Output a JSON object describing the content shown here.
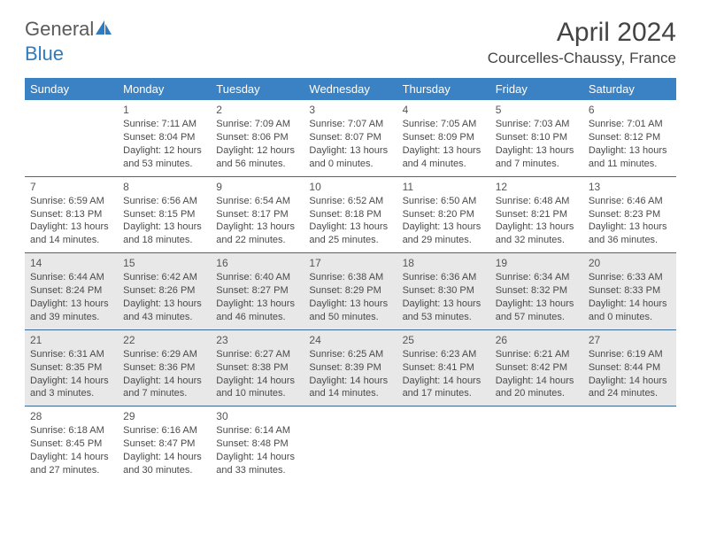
{
  "logo": {
    "text1": "General",
    "text2": "Blue"
  },
  "title": "April 2024",
  "location": "Courcelles-Chaussy, France",
  "colors": {
    "header_bg": "#3b82c4",
    "header_text": "#ffffff",
    "week_divider": "#3b6a99",
    "shaded_bg": "#e8e8e8",
    "body_text": "#4a4a4a",
    "logo_gray": "#5a5a5a",
    "logo_blue": "#2f7bbf"
  },
  "day_names": [
    "Sunday",
    "Monday",
    "Tuesday",
    "Wednesday",
    "Thursday",
    "Friday",
    "Saturday"
  ],
  "weeks": [
    {
      "shaded": false,
      "cells": [
        {
          "day": "",
          "sunrise": "",
          "sunset": "",
          "daylight1": "",
          "daylight2": ""
        },
        {
          "day": "1",
          "sunrise": "Sunrise: 7:11 AM",
          "sunset": "Sunset: 8:04 PM",
          "daylight1": "Daylight: 12 hours",
          "daylight2": "and 53 minutes."
        },
        {
          "day": "2",
          "sunrise": "Sunrise: 7:09 AM",
          "sunset": "Sunset: 8:06 PM",
          "daylight1": "Daylight: 12 hours",
          "daylight2": "and 56 minutes."
        },
        {
          "day": "3",
          "sunrise": "Sunrise: 7:07 AM",
          "sunset": "Sunset: 8:07 PM",
          "daylight1": "Daylight: 13 hours",
          "daylight2": "and 0 minutes."
        },
        {
          "day": "4",
          "sunrise": "Sunrise: 7:05 AM",
          "sunset": "Sunset: 8:09 PM",
          "daylight1": "Daylight: 13 hours",
          "daylight2": "and 4 minutes."
        },
        {
          "day": "5",
          "sunrise": "Sunrise: 7:03 AM",
          "sunset": "Sunset: 8:10 PM",
          "daylight1": "Daylight: 13 hours",
          "daylight2": "and 7 minutes."
        },
        {
          "day": "6",
          "sunrise": "Sunrise: 7:01 AM",
          "sunset": "Sunset: 8:12 PM",
          "daylight1": "Daylight: 13 hours",
          "daylight2": "and 11 minutes."
        }
      ]
    },
    {
      "shaded": false,
      "cells": [
        {
          "day": "7",
          "sunrise": "Sunrise: 6:59 AM",
          "sunset": "Sunset: 8:13 PM",
          "daylight1": "Daylight: 13 hours",
          "daylight2": "and 14 minutes."
        },
        {
          "day": "8",
          "sunrise": "Sunrise: 6:56 AM",
          "sunset": "Sunset: 8:15 PM",
          "daylight1": "Daylight: 13 hours",
          "daylight2": "and 18 minutes."
        },
        {
          "day": "9",
          "sunrise": "Sunrise: 6:54 AM",
          "sunset": "Sunset: 8:17 PM",
          "daylight1": "Daylight: 13 hours",
          "daylight2": "and 22 minutes."
        },
        {
          "day": "10",
          "sunrise": "Sunrise: 6:52 AM",
          "sunset": "Sunset: 8:18 PM",
          "daylight1": "Daylight: 13 hours",
          "daylight2": "and 25 minutes."
        },
        {
          "day": "11",
          "sunrise": "Sunrise: 6:50 AM",
          "sunset": "Sunset: 8:20 PM",
          "daylight1": "Daylight: 13 hours",
          "daylight2": "and 29 minutes."
        },
        {
          "day": "12",
          "sunrise": "Sunrise: 6:48 AM",
          "sunset": "Sunset: 8:21 PM",
          "daylight1": "Daylight: 13 hours",
          "daylight2": "and 32 minutes."
        },
        {
          "day": "13",
          "sunrise": "Sunrise: 6:46 AM",
          "sunset": "Sunset: 8:23 PM",
          "daylight1": "Daylight: 13 hours",
          "daylight2": "and 36 minutes."
        }
      ]
    },
    {
      "shaded": true,
      "cells": [
        {
          "day": "14",
          "sunrise": "Sunrise: 6:44 AM",
          "sunset": "Sunset: 8:24 PM",
          "daylight1": "Daylight: 13 hours",
          "daylight2": "and 39 minutes."
        },
        {
          "day": "15",
          "sunrise": "Sunrise: 6:42 AM",
          "sunset": "Sunset: 8:26 PM",
          "daylight1": "Daylight: 13 hours",
          "daylight2": "and 43 minutes."
        },
        {
          "day": "16",
          "sunrise": "Sunrise: 6:40 AM",
          "sunset": "Sunset: 8:27 PM",
          "daylight1": "Daylight: 13 hours",
          "daylight2": "and 46 minutes."
        },
        {
          "day": "17",
          "sunrise": "Sunrise: 6:38 AM",
          "sunset": "Sunset: 8:29 PM",
          "daylight1": "Daylight: 13 hours",
          "daylight2": "and 50 minutes."
        },
        {
          "day": "18",
          "sunrise": "Sunrise: 6:36 AM",
          "sunset": "Sunset: 8:30 PM",
          "daylight1": "Daylight: 13 hours",
          "daylight2": "and 53 minutes."
        },
        {
          "day": "19",
          "sunrise": "Sunrise: 6:34 AM",
          "sunset": "Sunset: 8:32 PM",
          "daylight1": "Daylight: 13 hours",
          "daylight2": "and 57 minutes."
        },
        {
          "day": "20",
          "sunrise": "Sunrise: 6:33 AM",
          "sunset": "Sunset: 8:33 PM",
          "daylight1": "Daylight: 14 hours",
          "daylight2": "and 0 minutes."
        }
      ]
    },
    {
      "shaded": true,
      "cells": [
        {
          "day": "21",
          "sunrise": "Sunrise: 6:31 AM",
          "sunset": "Sunset: 8:35 PM",
          "daylight1": "Daylight: 14 hours",
          "daylight2": "and 3 minutes."
        },
        {
          "day": "22",
          "sunrise": "Sunrise: 6:29 AM",
          "sunset": "Sunset: 8:36 PM",
          "daylight1": "Daylight: 14 hours",
          "daylight2": "and 7 minutes."
        },
        {
          "day": "23",
          "sunrise": "Sunrise: 6:27 AM",
          "sunset": "Sunset: 8:38 PM",
          "daylight1": "Daylight: 14 hours",
          "daylight2": "and 10 minutes."
        },
        {
          "day": "24",
          "sunrise": "Sunrise: 6:25 AM",
          "sunset": "Sunset: 8:39 PM",
          "daylight1": "Daylight: 14 hours",
          "daylight2": "and 14 minutes."
        },
        {
          "day": "25",
          "sunrise": "Sunrise: 6:23 AM",
          "sunset": "Sunset: 8:41 PM",
          "daylight1": "Daylight: 14 hours",
          "daylight2": "and 17 minutes."
        },
        {
          "day": "26",
          "sunrise": "Sunrise: 6:21 AM",
          "sunset": "Sunset: 8:42 PM",
          "daylight1": "Daylight: 14 hours",
          "daylight2": "and 20 minutes."
        },
        {
          "day": "27",
          "sunrise": "Sunrise: 6:19 AM",
          "sunset": "Sunset: 8:44 PM",
          "daylight1": "Daylight: 14 hours",
          "daylight2": "and 24 minutes."
        }
      ]
    },
    {
      "shaded": false,
      "cells": [
        {
          "day": "28",
          "sunrise": "Sunrise: 6:18 AM",
          "sunset": "Sunset: 8:45 PM",
          "daylight1": "Daylight: 14 hours",
          "daylight2": "and 27 minutes."
        },
        {
          "day": "29",
          "sunrise": "Sunrise: 6:16 AM",
          "sunset": "Sunset: 8:47 PM",
          "daylight1": "Daylight: 14 hours",
          "daylight2": "and 30 minutes."
        },
        {
          "day": "30",
          "sunrise": "Sunrise: 6:14 AM",
          "sunset": "Sunset: 8:48 PM",
          "daylight1": "Daylight: 14 hours",
          "daylight2": "and 33 minutes."
        },
        {
          "day": "",
          "sunrise": "",
          "sunset": "",
          "daylight1": "",
          "daylight2": ""
        },
        {
          "day": "",
          "sunrise": "",
          "sunset": "",
          "daylight1": "",
          "daylight2": ""
        },
        {
          "day": "",
          "sunrise": "",
          "sunset": "",
          "daylight1": "",
          "daylight2": ""
        },
        {
          "day": "",
          "sunrise": "",
          "sunset": "",
          "daylight1": "",
          "daylight2": ""
        }
      ]
    }
  ]
}
